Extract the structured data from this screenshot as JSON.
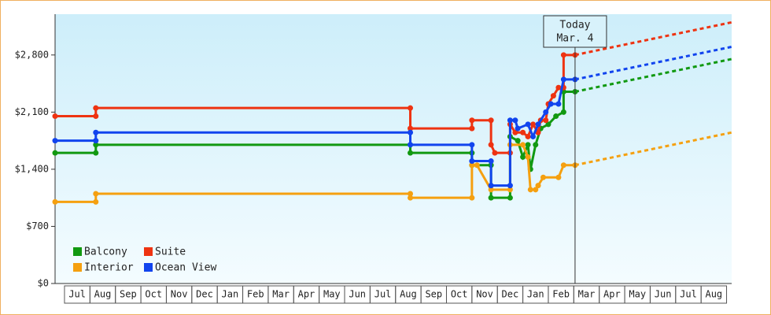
{
  "chart_data": {
    "type": "line",
    "xlim": [
      -0.37,
      26.2
    ],
    "xticks": [
      {
        "value": 0.5,
        "label": "Jul"
      },
      {
        "value": 1.5,
        "label": "Aug"
      },
      {
        "value": 2.5,
        "label": "Sep"
      },
      {
        "value": 3.5,
        "label": "Oct"
      },
      {
        "value": 4.5,
        "label": "Nov"
      },
      {
        "value": 5.5,
        "label": "Dec"
      },
      {
        "value": 6.5,
        "label": "Jan"
      },
      {
        "value": 7.5,
        "label": "Feb"
      },
      {
        "value": 8.5,
        "label": "Mar"
      },
      {
        "value": 9.5,
        "label": "Apr"
      },
      {
        "value": 10.5,
        "label": "May"
      },
      {
        "value": 11.5,
        "label": "Jun"
      },
      {
        "value": 12.5,
        "label": "Jul"
      },
      {
        "value": 13.5,
        "label": "Aug"
      },
      {
        "value": 14.5,
        "label": "Sep"
      },
      {
        "value": 15.5,
        "label": "Oct"
      },
      {
        "value": 16.5,
        "label": "Nov"
      },
      {
        "value": 17.5,
        "label": "Dec"
      },
      {
        "value": 18.5,
        "label": "Jan"
      },
      {
        "value": 19.5,
        "label": "Feb"
      },
      {
        "value": 20.5,
        "label": "Mar"
      },
      {
        "value": 21.5,
        "label": "Apr"
      },
      {
        "value": 22.5,
        "label": "May"
      },
      {
        "value": 23.5,
        "label": "Jun"
      },
      {
        "value": 24.5,
        "label": "Jul"
      },
      {
        "value": 25.5,
        "label": "Aug"
      }
    ],
    "ylim": [
      0,
      3300
    ],
    "yticks": [
      {
        "value": 0,
        "label": "$0"
      },
      {
        "value": 700,
        "label": "$700"
      },
      {
        "value": 1400,
        "label": "$1,400"
      },
      {
        "value": 2100,
        "label": "$2,100"
      },
      {
        "value": 2800,
        "label": "$2,800"
      }
    ],
    "annotation": {
      "x": 20.05,
      "lines": [
        "Today",
        "Mar. 4"
      ]
    },
    "series": [
      {
        "name": "Balcony",
        "color": "#119911",
        "x": [
          -0.37,
          1.23,
          1.23,
          13.58,
          13.58,
          16.0,
          16.0,
          16.75,
          16.75,
          17.5,
          17.5,
          17.8,
          18.0,
          18.2,
          18.3,
          18.5,
          18.7,
          19.0,
          19.3,
          19.6,
          19.6,
          20.05
        ],
        "values": [
          1600,
          1600,
          1700,
          1700,
          1600,
          1600,
          1450,
          1450,
          1050,
          1050,
          1800,
          1750,
          1550,
          1700,
          1400,
          1700,
          1900,
          1950,
          2050,
          2100,
          2350,
          2350
        ],
        "forecast": {
          "x": [
            20.05,
            26.2
          ],
          "values": [
            2350,
            2750
          ]
        }
      },
      {
        "name": "Suite",
        "color": "#ee3311",
        "x": [
          -0.37,
          1.23,
          1.23,
          13.58,
          13.58,
          16.0,
          16.0,
          16.75,
          16.75,
          16.9,
          17.5,
          17.5,
          17.7,
          18.0,
          18.2,
          18.4,
          18.6,
          18.7,
          18.9,
          19.0,
          19.2,
          19.4,
          19.6,
          19.6,
          20.05
        ],
        "values": [
          2050,
          2050,
          2150,
          2150,
          1900,
          1900,
          2000,
          2000,
          1700,
          1600,
          1600,
          1950,
          1850,
          1850,
          1800,
          1950,
          1850,
          2000,
          2000,
          2200,
          2300,
          2400,
          2400,
          2800,
          2800
        ],
        "forecast": {
          "x": [
            20.05,
            26.2
          ],
          "values": [
            2800,
            3200
          ]
        }
      },
      {
        "name": "Interior",
        "color": "#f5a010",
        "x": [
          -0.37,
          1.23,
          1.23,
          13.58,
          13.58,
          16.0,
          16.0,
          16.2,
          16.75,
          17.5,
          17.5,
          18.0,
          18.2,
          18.3,
          18.5,
          18.6,
          18.8,
          19.4,
          19.6,
          20.05
        ],
        "values": [
          1000,
          1000,
          1100,
          1100,
          1050,
          1050,
          1450,
          1450,
          1150,
          1150,
          1700,
          1700,
          1550,
          1150,
          1150,
          1200,
          1300,
          1300,
          1450,
          1450
        ],
        "forecast": {
          "x": [
            20.05,
            26.2
          ],
          "values": [
            1450,
            1850
          ]
        }
      },
      {
        "name": "Ocean View",
        "color": "#1144ee",
        "x": [
          -0.37,
          1.23,
          1.23,
          13.58,
          13.58,
          16.0,
          16.0,
          16.75,
          16.75,
          17.5,
          17.5,
          17.7,
          17.8,
          18.2,
          18.4,
          18.6,
          18.9,
          19.1,
          19.4,
          19.6,
          20.05
        ],
        "values": [
          1750,
          1750,
          1850,
          1850,
          1700,
          1700,
          1500,
          1500,
          1200,
          1200,
          2000,
          2000,
          1900,
          1950,
          1800,
          1950,
          2100,
          2200,
          2200,
          2500,
          2500
        ],
        "forecast": {
          "x": [
            20.05,
            26.2
          ],
          "values": [
            2500,
            2900
          ]
        }
      }
    ]
  }
}
